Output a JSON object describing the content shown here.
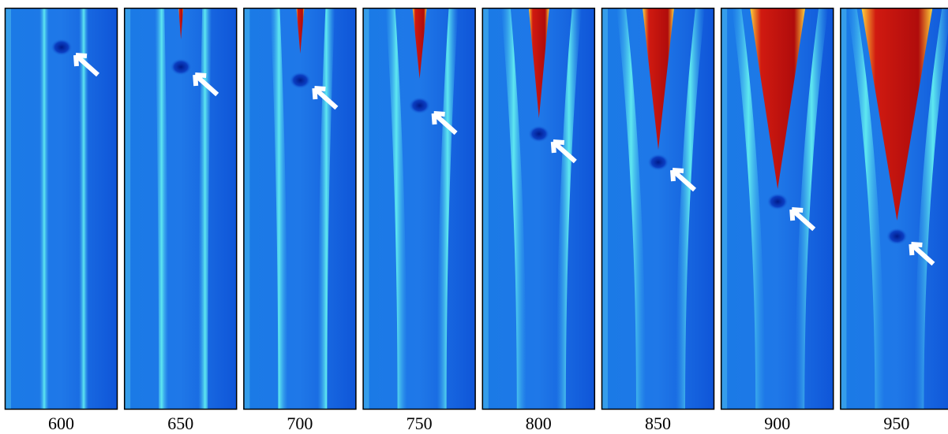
{
  "panels": [
    {
      "label": "600"
    },
    {
      "label": "650"
    },
    {
      "label": "700"
    },
    {
      "label": "750"
    },
    {
      "label": "800"
    },
    {
      "label": "850"
    },
    {
      "label": "900"
    },
    {
      "label": "950"
    }
  ]
}
